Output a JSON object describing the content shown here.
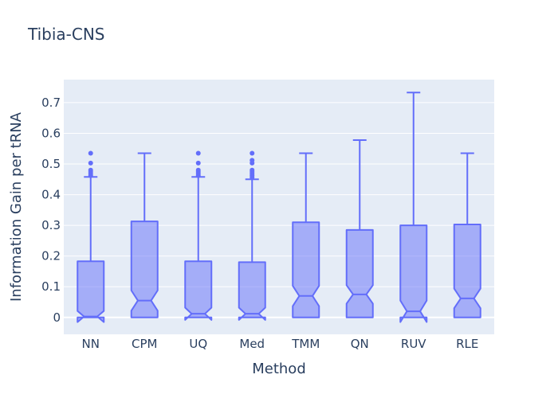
{
  "chart_data": {
    "type": "box",
    "title": "Tibia-CNS",
    "xlabel": "Method",
    "ylabel": "Information Gain per tRNA",
    "ylim": [
      -0.055,
      0.775
    ],
    "yticks": [
      0,
      0.1,
      0.2,
      0.3,
      0.4,
      0.5,
      0.6,
      0.7
    ],
    "ytick_labels": [
      "0",
      "0.1",
      "0.2",
      "0.3",
      "0.4",
      "0.5",
      "0.6",
      "0.7"
    ],
    "grid": true,
    "notched": true,
    "colors": {
      "line": "#636efa",
      "fill": "rgba(99,110,250,0.5)",
      "plot_bg": "#e5ecf6",
      "grid": "#ffffff",
      "text": "#2a3f5f"
    },
    "categories": [
      "NN",
      "CPM",
      "UQ",
      "Med",
      "TMM",
      "QN",
      "RUV",
      "RLE"
    ],
    "boxes": [
      {
        "name": "NN",
        "q1": 0.0,
        "median": 0.003,
        "q3": 0.183,
        "lowerfence": 0.0,
        "upperfence": 0.458,
        "notch": [
          -0.015,
          0.021
        ],
        "outliers": [
          0.535,
          0.503,
          0.48,
          0.474,
          0.468,
          0.462
        ]
      },
      {
        "name": "CPM",
        "q1": 0.0,
        "median": 0.055,
        "q3": 0.313,
        "lowerfence": 0.0,
        "upperfence": 0.535,
        "notch": [
          0.022,
          0.088
        ],
        "outliers": []
      },
      {
        "name": "UQ",
        "q1": 0.0,
        "median": 0.012,
        "q3": 0.183,
        "lowerfence": 0.0,
        "upperfence": 0.458,
        "notch": [
          -0.008,
          0.032
        ],
        "outliers": [
          0.535,
          0.503,
          0.48,
          0.474,
          0.468,
          0.462
        ]
      },
      {
        "name": "Med",
        "q1": 0.0,
        "median": 0.012,
        "q3": 0.18,
        "lowerfence": 0.0,
        "upperfence": 0.45,
        "notch": [
          -0.008,
          0.032
        ],
        "outliers": [
          0.535,
          0.512,
          0.503,
          0.48,
          0.474,
          0.468,
          0.462,
          0.456
        ]
      },
      {
        "name": "TMM",
        "q1": 0.0,
        "median": 0.07,
        "q3": 0.31,
        "lowerfence": 0.0,
        "upperfence": 0.535,
        "notch": [
          0.037,
          0.103
        ],
        "outliers": []
      },
      {
        "name": "QN",
        "q1": 0.0,
        "median": 0.075,
        "q3": 0.285,
        "lowerfence": 0.0,
        "upperfence": 0.578,
        "notch": [
          0.045,
          0.105
        ],
        "outliers": []
      },
      {
        "name": "RUV",
        "q1": 0.0,
        "median": 0.02,
        "q3": 0.3,
        "lowerfence": 0.0,
        "upperfence": 0.733,
        "notch": [
          -0.015,
          0.055
        ],
        "outliers": []
      },
      {
        "name": "RLE",
        "q1": 0.0,
        "median": 0.062,
        "q3": 0.303,
        "lowerfence": 0.0,
        "upperfence": 0.535,
        "notch": [
          0.03,
          0.094
        ],
        "outliers": []
      }
    ]
  }
}
